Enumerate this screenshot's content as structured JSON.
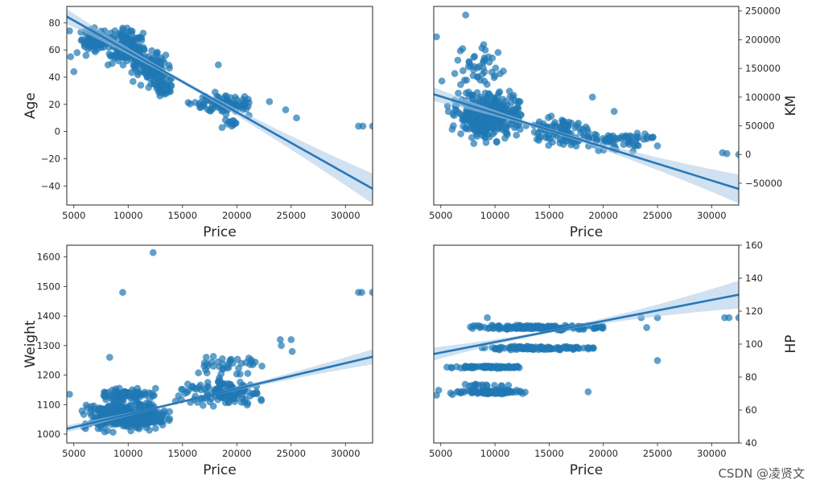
{
  "watermark": "CSDN @凌贤文",
  "colors": {
    "point": "#1f77b4",
    "line": "#2878b8",
    "band": "#a9c8e6",
    "axis": "#262626"
  },
  "chart_data": [
    {
      "type": "scatter",
      "id": "age",
      "xlabel": "Price",
      "ylabel": "Age",
      "ylabel_side": "left",
      "xlim": [
        4350,
        32500
      ],
      "ylim": [
        -54,
        92
      ],
      "xticks": [
        5000,
        10000,
        15000,
        20000,
        25000,
        30000
      ],
      "xtick_labels": [
        "5000",
        "10000",
        "15000",
        "20000",
        "25000",
        "30000"
      ],
      "yticks": [
        -40,
        -20,
        0,
        20,
        40,
        60,
        80
      ],
      "ytick_labels": [
        "−40",
        "−20",
        "0",
        "20",
        "40",
        "60",
        "80"
      ],
      "regression": {
        "x": [
          4350,
          32500
        ],
        "y": [
          84.5,
          -42
        ],
        "band": [
          1.5,
          8
        ]
      },
      "clusters": [
        {
          "x": [
            5500,
            8500
          ],
          "y": [
            55,
            80
          ],
          "n": 110,
          "seed": 11
        },
        {
          "x": [
            8000,
            11500
          ],
          "y": [
            45,
            80
          ],
          "n": 140,
          "seed": 12
        },
        {
          "x": [
            10000,
            14000
          ],
          "y": [
            30,
            65
          ],
          "n": 110,
          "seed": 13
        },
        {
          "x": [
            12000,
            14500
          ],
          "y": [
            22,
            45
          ],
          "n": 40,
          "seed": 14
        },
        {
          "x": [
            15000,
            22500
          ],
          "y": [
            10,
            32
          ],
          "n": 90,
          "seed": 15
        },
        {
          "x": [
            18500,
            21000
          ],
          "y": [
            2,
            12
          ],
          "n": 12,
          "seed": 16
        }
      ],
      "points": [
        [
          4600,
          74
        ],
        [
          4700,
          55
        ],
        [
          5000,
          44
        ],
        [
          5300,
          58
        ],
        [
          18300,
          49
        ],
        [
          23000,
          22
        ],
        [
          24500,
          16
        ],
        [
          25500,
          10
        ],
        [
          31200,
          4
        ],
        [
          31600,
          4
        ],
        [
          32500,
          4
        ]
      ]
    },
    {
      "type": "scatter",
      "id": "km",
      "xlabel": "Price",
      "ylabel": "KM",
      "ylabel_side": "right",
      "xlim": [
        4350,
        32500
      ],
      "ylim": [
        -88000,
        258000
      ],
      "xticks": [
        5000,
        10000,
        15000,
        20000,
        25000,
        30000
      ],
      "xtick_labels": [
        "5000",
        "10000",
        "15000",
        "20000",
        "25000",
        "30000"
      ],
      "yticks": [
        -50000,
        0,
        50000,
        100000,
        150000,
        200000,
        250000
      ],
      "ytick_labels": [
        "−50000",
        "0",
        "50000",
        "100000",
        "150000",
        "200000",
        "250000"
      ],
      "regression": {
        "x": [
          4350,
          32500
        ],
        "y": [
          105000,
          -60000
        ],
        "band": [
          3000,
          18000
        ]
      },
      "clusters": [
        {
          "x": [
            5500,
            13000
          ],
          "y": [
            10000,
            130000
          ],
          "n": 320,
          "seed": 21
        },
        {
          "x": [
            6000,
            11000
          ],
          "y": [
            110000,
            205000
          ],
          "n": 40,
          "seed": 22
        },
        {
          "x": [
            13000,
            19000
          ],
          "y": [
            5000,
            75000
          ],
          "n": 90,
          "seed": 23
        },
        {
          "x": [
            17000,
            25000
          ],
          "y": [
            0,
            50000
          ],
          "n": 70,
          "seed": 24
        }
      ],
      "points": [
        [
          4600,
          205000
        ],
        [
          5100,
          128000
        ],
        [
          7300,
          243000
        ],
        [
          9100,
          182000
        ],
        [
          9400,
          170000
        ],
        [
          19000,
          100000
        ],
        [
          21000,
          75000
        ],
        [
          25000,
          15000
        ],
        [
          31000,
          3000
        ],
        [
          31400,
          1500
        ],
        [
          32500,
          0
        ]
      ]
    },
    {
      "type": "scatter",
      "id": "weight",
      "xlabel": "Price",
      "ylabel": "Weight",
      "ylabel_side": "left",
      "xlim": [
        4350,
        32500
      ],
      "ylim": [
        970,
        1640
      ],
      "xticks": [
        5000,
        10000,
        15000,
        20000,
        25000,
        30000
      ],
      "xtick_labels": [
        "5000",
        "10000",
        "15000",
        "20000",
        "25000",
        "30000"
      ],
      "yticks": [
        1000,
        1100,
        1200,
        1300,
        1400,
        1500,
        1600
      ],
      "ytick_labels": [
        "1000",
        "1100",
        "1200",
        "1300",
        "1400",
        "1500",
        "1600"
      ],
      "regression": {
        "x": [
          4350,
          32500
        ],
        "y": [
          1018,
          1262
        ],
        "band": [
          3,
          18
        ]
      },
      "clusters": [
        {
          "x": [
            5500,
            14000
          ],
          "y": [
            1000,
            1120
          ],
          "n": 400,
          "seed": 31
        },
        {
          "x": [
            7000,
            13000
          ],
          "y": [
            1100,
            1170
          ],
          "n": 80,
          "seed": 32
        },
        {
          "x": [
            14000,
            22500
          ],
          "y": [
            1080,
            1200
          ],
          "n": 120,
          "seed": 33
        },
        {
          "x": [
            16000,
            23000
          ],
          "y": [
            1180,
            1280
          ],
          "n": 40,
          "seed": 34
        }
      ],
      "points": [
        [
          4600,
          1135
        ],
        [
          8300,
          1260
        ],
        [
          9500,
          1480
        ],
        [
          12300,
          1615
        ],
        [
          24000,
          1320
        ],
        [
          25000,
          1320
        ],
        [
          25100,
          1280
        ],
        [
          24100,
          1300
        ],
        [
          31200,
          1480
        ],
        [
          31500,
          1480
        ],
        [
          32500,
          1480
        ]
      ]
    },
    {
      "type": "scatter",
      "id": "hp",
      "xlabel": "Price",
      "ylabel": "HP",
      "ylabel_side": "right",
      "xlim": [
        4350,
        32500
      ],
      "ylim": [
        40,
        160
      ],
      "xticks": [
        5000,
        10000,
        15000,
        20000,
        25000,
        30000
      ],
      "xtick_labels": [
        "5000",
        "10000",
        "15000",
        "20000",
        "25000",
        "30000"
      ],
      "yticks": [
        40,
        60,
        80,
        100,
        120,
        140,
        160
      ],
      "ytick_labels": [
        "40",
        "60",
        "80",
        "100",
        "120",
        "140",
        "160"
      ],
      "regression": {
        "x": [
          4350,
          32500
        ],
        "y": [
          94,
          130
        ],
        "band": [
          0.8,
          6
        ]
      },
      "clusters": [
        {
          "x": [
            5500,
            13500
          ],
          "y": [
            69,
            73
          ],
          "n": 90,
          "seed": 41
        },
        {
          "x": [
            5500,
            13000
          ],
          "y": [
            85,
            87
          ],
          "n": 80,
          "seed": 42
        },
        {
          "x": [
            8000,
            20000
          ],
          "y": [
            96,
            99
          ],
          "n": 120,
          "seed": 43
        },
        {
          "x": [
            7000,
            21000
          ],
          "y": [
            108,
            112
          ],
          "n": 160,
          "seed": 44
        },
        {
          "x": [
            6000,
            12000
          ],
          "y": [
            74,
            76
          ],
          "n": 15,
          "seed": 45
        }
      ],
      "points": [
        [
          4600,
          69
        ],
        [
          4800,
          72
        ],
        [
          18600,
          71
        ],
        [
          23500,
          116
        ],
        [
          25000,
          116
        ],
        [
          24000,
          110
        ],
        [
          25000,
          90
        ],
        [
          31200,
          116
        ],
        [
          31600,
          116
        ],
        [
          32500,
          116
        ],
        [
          9300,
          116
        ]
      ]
    }
  ]
}
